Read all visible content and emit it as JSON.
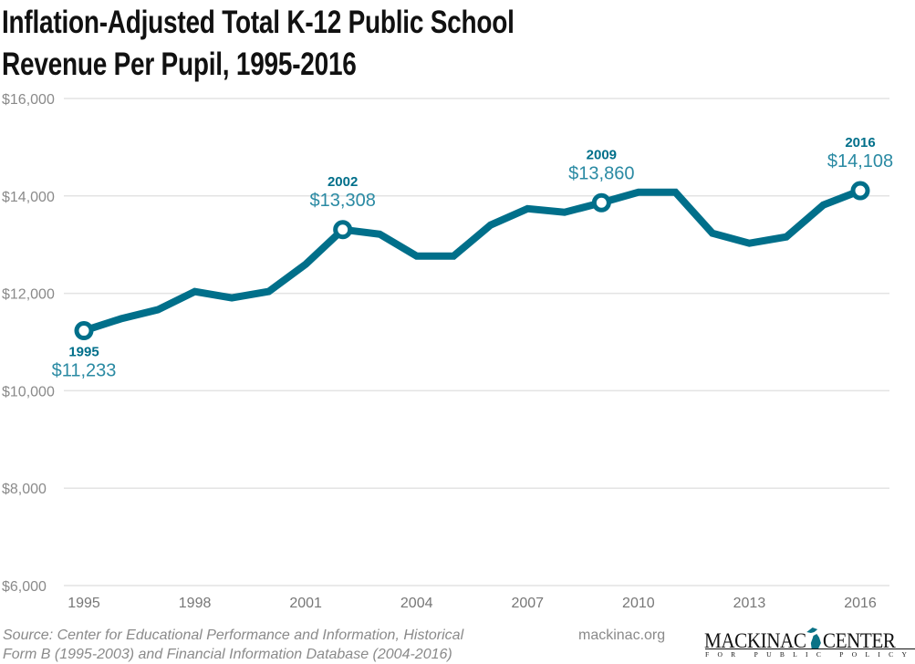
{
  "chart_data": {
    "type": "line",
    "title": "Inflation-Adjusted Total K-12 Public School Revenue Per Pupil, 1995-2016",
    "title_lines": [
      "Inflation-Adjusted Total K-12 Public School",
      "Revenue Per Pupil, 1995-2016"
    ],
    "xlabel": "",
    "ylabel": "",
    "x": [
      1995,
      1996,
      1997,
      1998,
      1999,
      2000,
      2001,
      2002,
      2003,
      2004,
      2005,
      2006,
      2007,
      2008,
      2009,
      2010,
      2011,
      2012,
      2013,
      2014,
      2015,
      2016
    ],
    "values": [
      11233,
      11477,
      11664,
      12037,
      11907,
      12037,
      12598,
      13308,
      13215,
      12766,
      12766,
      13402,
      13738,
      13664,
      13860,
      14075,
      14075,
      13234,
      13028,
      13159,
      13813,
      14108
    ],
    "ylim": [
      6000,
      16000
    ],
    "y_ticks": [
      6000,
      8000,
      10000,
      12000,
      14000,
      16000
    ],
    "y_tick_labels": [
      "$6,000",
      "$8,000",
      "$10,000",
      "$12,000",
      "$14,000",
      "$16,000"
    ],
    "x_ticks": [
      1995,
      1998,
      2001,
      2004,
      2007,
      2010,
      2013,
      2016
    ],
    "x_tick_labels": [
      "1995",
      "1998",
      "2001",
      "2004",
      "2007",
      "2010",
      "2013",
      "2016"
    ],
    "annotations": [
      {
        "year": 1995,
        "year_label": "1995",
        "value_label": "$11,233",
        "position": "below"
      },
      {
        "year": 2002,
        "year_label": "2002",
        "value_label": "$13,308",
        "position": "above"
      },
      {
        "year": 2009,
        "year_label": "2009",
        "value_label": "$13,860",
        "position": "above"
      },
      {
        "year": 2016,
        "year_label": "2016",
        "value_label": "$14,108",
        "position": "above"
      }
    ],
    "grid": true,
    "line_color": "#006f8a",
    "text_color": "#2a8aa3"
  },
  "footer": {
    "source_line1": "Source: Center for Educational Performance and Information, Historical",
    "source_line2": "Form B (1995-2003) and Financial Information Database (2004-2016)",
    "site": "mackinac.org",
    "logo_main_left": "MACKINAC",
    "logo_main_right": "CENTER",
    "logo_sub": "FOR PUBLIC POLICY"
  }
}
